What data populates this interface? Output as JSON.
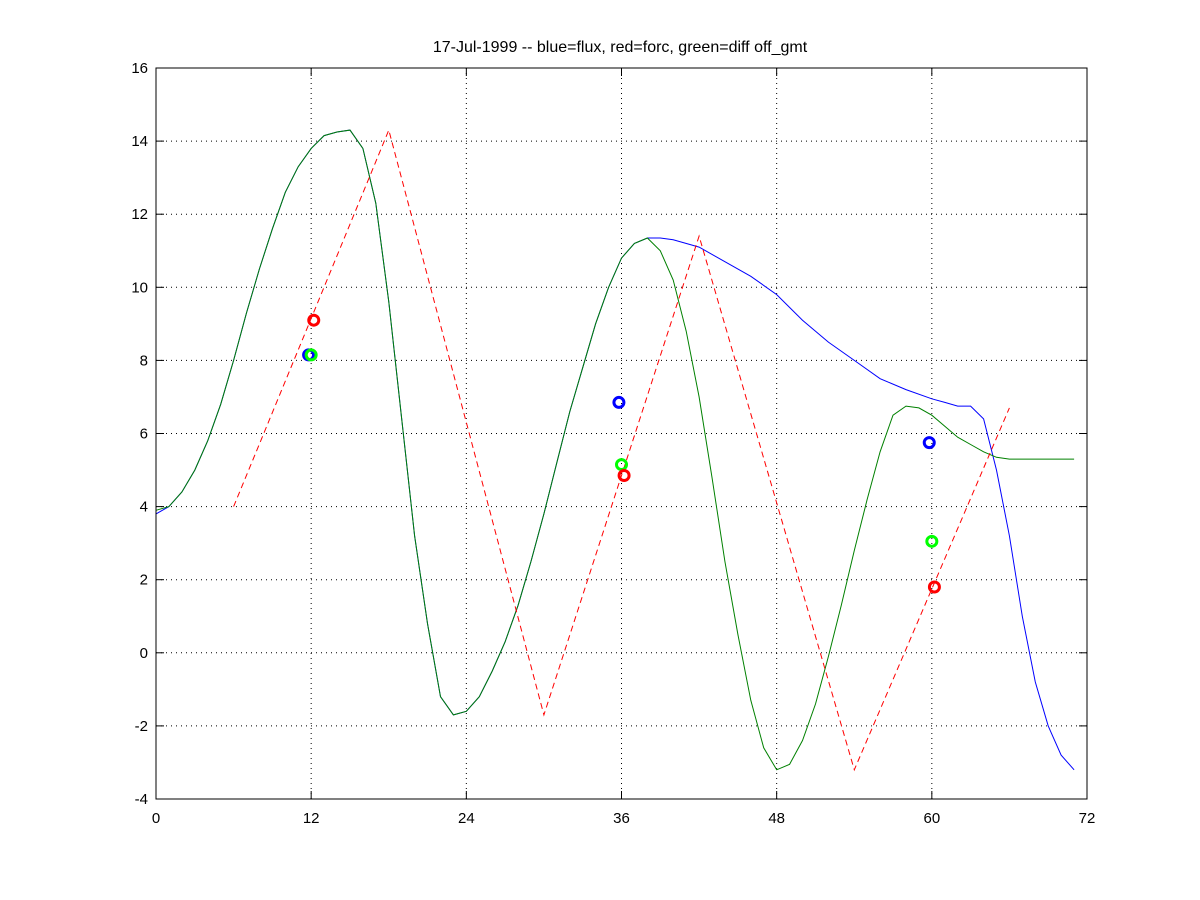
{
  "chart_data": {
    "type": "line",
    "title": "17-Jul-1999 -- blue=flux, red=forc, green=diff off_gmt",
    "xlabel": "",
    "ylabel": "",
    "xlim": [
      0,
      72
    ],
    "ylim": [
      -4,
      16
    ],
    "xticks": [
      0,
      12,
      24,
      36,
      48,
      60,
      72
    ],
    "yticks": [
      -4,
      -2,
      0,
      2,
      4,
      6,
      8,
      10,
      12,
      14,
      16
    ],
    "grid": true,
    "colors": {
      "blue": "#0000ff",
      "red": "#ff0000",
      "green": "#008000",
      "lightgreen": "#00ff00"
    },
    "series": [
      {
        "key": "flux",
        "color": "#0000ff",
        "style": "solid",
        "x": [
          0,
          1,
          2,
          3,
          4,
          5,
          6,
          7,
          8,
          9,
          10,
          11,
          12,
          13,
          14,
          15,
          16,
          17,
          18,
          19,
          20,
          21,
          22,
          23,
          24,
          25,
          26,
          27,
          28,
          29,
          30,
          31,
          32,
          33,
          34,
          35,
          36,
          37,
          38,
          39,
          40,
          42,
          44,
          46,
          48,
          50,
          52,
          54,
          56,
          58,
          60,
          61,
          62,
          63,
          64,
          65,
          66,
          67,
          68,
          69,
          70,
          71
        ],
        "y": [
          3.8,
          4.0,
          4.4,
          5.0,
          5.8,
          6.8,
          8.0,
          9.3,
          10.5,
          11.6,
          12.6,
          13.3,
          13.8,
          14.15,
          14.25,
          14.3,
          13.8,
          12.3,
          9.6,
          6.4,
          3.2,
          0.8,
          -1.2,
          -1.7,
          -1.6,
          -1.2,
          -0.5,
          0.3,
          1.3,
          2.5,
          3.8,
          5.2,
          6.6,
          7.8,
          9.0,
          10.0,
          10.8,
          11.2,
          11.35,
          11.35,
          11.3,
          11.1,
          10.7,
          10.3,
          9.8,
          9.1,
          8.5,
          8.0,
          7.5,
          7.2,
          6.95,
          6.85,
          6.75,
          6.75,
          6.4,
          5.0,
          3.2,
          1.0,
          -0.8,
          -2.0,
          -2.8,
          -3.2
        ]
      },
      {
        "key": "diff",
        "color": "#008000",
        "style": "solid",
        "x": [
          0,
          1,
          2,
          3,
          4,
          5,
          6,
          7,
          8,
          9,
          10,
          11,
          12,
          13,
          14,
          15,
          16,
          17,
          18,
          19,
          20,
          21,
          22,
          23,
          24,
          25,
          26,
          27,
          28,
          29,
          30,
          31,
          32,
          33,
          34,
          35,
          36,
          37,
          38,
          39,
          40,
          41,
          42,
          43,
          44,
          45,
          46,
          47,
          48,
          49,
          50,
          51,
          52,
          53,
          54,
          55,
          56,
          57,
          58,
          59,
          60,
          61,
          62,
          63,
          64,
          65,
          66,
          67,
          68,
          69,
          70,
          71
        ],
        "y": [
          3.9,
          4.0,
          4.4,
          5.0,
          5.8,
          6.8,
          8.0,
          9.3,
          10.5,
          11.6,
          12.6,
          13.3,
          13.8,
          14.15,
          14.25,
          14.3,
          13.8,
          12.3,
          9.6,
          6.4,
          3.2,
          0.8,
          -1.2,
          -1.7,
          -1.6,
          -1.2,
          -0.5,
          0.3,
          1.3,
          2.5,
          3.8,
          5.2,
          6.6,
          7.8,
          9.0,
          10.0,
          10.8,
          11.2,
          11.35,
          11.0,
          10.2,
          8.8,
          7.0,
          4.8,
          2.5,
          0.5,
          -1.3,
          -2.6,
          -3.2,
          -3.05,
          -2.4,
          -1.4,
          -0.1,
          1.3,
          2.8,
          4.2,
          5.5,
          6.5,
          6.75,
          6.7,
          6.5,
          6.2,
          5.9,
          5.7,
          5.5,
          5.35,
          5.3,
          5.3,
          5.3,
          5.3,
          5.3,
          5.3
        ]
      },
      {
        "key": "forc",
        "color": "#ff0000",
        "style": "dashed",
        "x": [
          6,
          18,
          30,
          42,
          54,
          66
        ],
        "y": [
          4.0,
          14.3,
          -1.7,
          11.4,
          -3.2,
          6.7
        ]
      }
    ],
    "markers": [
      {
        "key": "flux",
        "color": "#0000ff",
        "x": 11.8,
        "y": 8.15
      },
      {
        "key": "diff",
        "color": "#00ff00",
        "x": 12.0,
        "y": 8.15
      },
      {
        "key": "forc",
        "color": "#ff0000",
        "x": 12.2,
        "y": 9.1
      },
      {
        "key": "flux",
        "color": "#0000ff",
        "x": 35.8,
        "y": 6.85
      },
      {
        "key": "diff",
        "color": "#00ff00",
        "x": 36.0,
        "y": 5.15
      },
      {
        "key": "forc",
        "color": "#ff0000",
        "x": 36.2,
        "y": 4.85
      },
      {
        "key": "flux",
        "color": "#0000ff",
        "x": 59.8,
        "y": 5.75
      },
      {
        "key": "diff",
        "color": "#00ff00",
        "x": 60.0,
        "y": 3.05
      },
      {
        "key": "forc",
        "color": "#ff0000",
        "x": 60.2,
        "y": 1.8
      }
    ]
  }
}
